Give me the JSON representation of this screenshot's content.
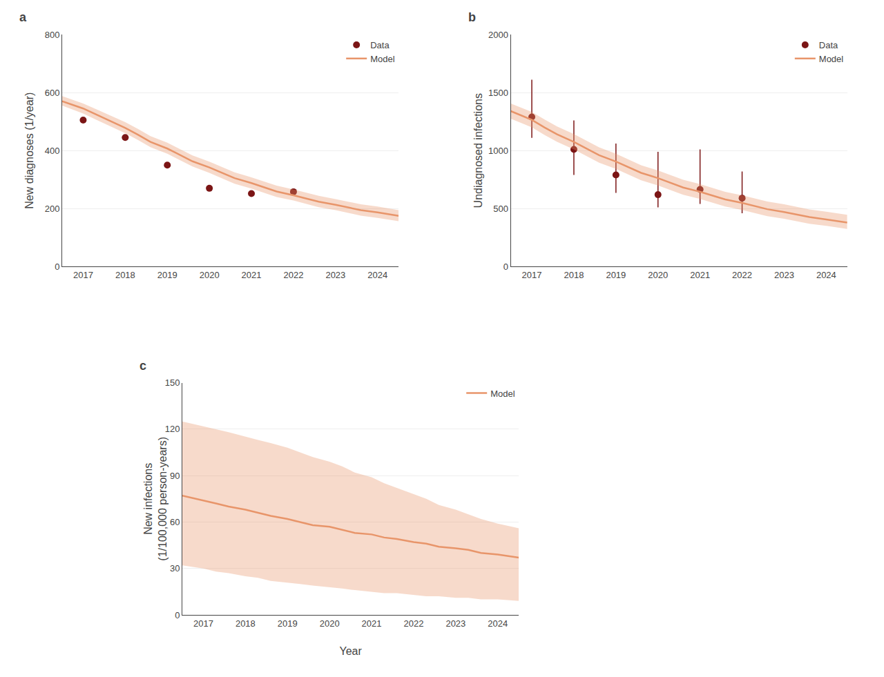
{
  "chart_data": [
    {
      "type": "line",
      "title": "a",
      "ylabel": "New diagnoses (1/year)",
      "xlim": [
        2016.5,
        2024.5
      ],
      "xticks": [
        2017,
        2018,
        2019,
        2020,
        2021,
        2022,
        2023,
        2024
      ],
      "ylim": [
        0,
        800
      ],
      "yticks": [
        0,
        200,
        400,
        600,
        800
      ],
      "grid": "y",
      "legend": "upper right",
      "series": [
        {
          "name": "Data",
          "type": "scatter",
          "color": "#7B1515",
          "x": [
            2017,
            2018,
            2019,
            2020,
            2021,
            2022
          ],
          "values": [
            505,
            445,
            350,
            270,
            252,
            258
          ]
        },
        {
          "name": "Model",
          "type": "line",
          "color": "#E8956A",
          "x": [
            2016.5,
            2017,
            2017.3,
            2017.6,
            2018,
            2018.3,
            2018.6,
            2019,
            2019.3,
            2019.6,
            2020,
            2020.3,
            2020.6,
            2021,
            2021.3,
            2021.6,
            2022,
            2022.3,
            2022.6,
            2023,
            2023.3,
            2023.6,
            2024,
            2024.5
          ],
          "values": [
            570,
            545,
            525,
            505,
            478,
            455,
            430,
            407,
            385,
            363,
            342,
            323,
            305,
            288,
            273,
            259,
            246,
            235,
            224,
            213,
            204,
            195,
            187,
            175
          ],
          "lower": [
            555,
            528,
            507,
            487,
            460,
            437,
            412,
            389,
            367,
            345,
            323,
            304,
            286,
            269,
            254,
            240,
            228,
            216,
            205,
            195,
            185,
            176,
            168,
            157
          ],
          "upper": [
            588,
            562,
            543,
            523,
            498,
            475,
            450,
            427,
            405,
            383,
            362,
            343,
            325,
            308,
            293,
            279,
            266,
            255,
            244,
            233,
            224,
            215,
            207,
            195
          ]
        }
      ]
    },
    {
      "type": "line",
      "title": "b",
      "ylabel": "Undiagnosed infections",
      "xlim": [
        2016.5,
        2024.5
      ],
      "xticks": [
        2017,
        2018,
        2019,
        2020,
        2021,
        2022,
        2023,
        2024
      ],
      "ylim": [
        0,
        2000
      ],
      "yticks": [
        0,
        500,
        1000,
        1500,
        2000
      ],
      "grid": "y",
      "legend": "upper right",
      "series": [
        {
          "name": "Data",
          "type": "scatter",
          "color": "#7B1515",
          "x": [
            2017,
            2018,
            2019,
            2020,
            2021,
            2022
          ],
          "values": [
            1290,
            1010,
            790,
            620,
            665,
            590
          ],
          "lower": [
            1110,
            790,
            635,
            510,
            540,
            460
          ],
          "upper": [
            1610,
            1260,
            1060,
            990,
            1010,
            820
          ]
        },
        {
          "name": "Model",
          "type": "line",
          "color": "#E8956A",
          "x": [
            2016.5,
            2017,
            2017.3,
            2017.6,
            2018,
            2018.3,
            2018.6,
            2019,
            2019.3,
            2019.6,
            2020,
            2020.3,
            2020.6,
            2021,
            2021.3,
            2021.6,
            2022,
            2022.3,
            2022.6,
            2023,
            2023.3,
            2023.6,
            2024,
            2024.5
          ],
          "values": [
            1340,
            1265,
            1200,
            1140,
            1075,
            1015,
            960,
            905,
            855,
            808,
            763,
            721,
            682,
            645,
            611,
            579,
            549,
            521,
            495,
            471,
            448,
            427,
            407,
            380
          ],
          "lower": [
            1275,
            1200,
            1135,
            1075,
            1010,
            951,
            896,
            842,
            792,
            744,
            699,
            658,
            619,
            583,
            549,
            518,
            488,
            461,
            435,
            412,
            390,
            370,
            351,
            325
          ],
          "upper": [
            1405,
            1333,
            1268,
            1208,
            1143,
            1083,
            1028,
            973,
            922,
            874,
            829,
            787,
            748,
            711,
            677,
            645,
            615,
            587,
            561,
            537,
            514,
            493,
            473,
            447
          ]
        }
      ]
    },
    {
      "type": "line",
      "title": "c",
      "ylabel": "New infections\n(1/100,000 person-years)",
      "xlabel": "Year",
      "xlim": [
        2016.5,
        2024.5
      ],
      "xticks": [
        2017,
        2018,
        2019,
        2020,
        2021,
        2022,
        2023,
        2024
      ],
      "ylim": [
        0,
        150
      ],
      "yticks": [
        0,
        30,
        60,
        90,
        120,
        150
      ],
      "grid": "y",
      "legend": "upper right",
      "series": [
        {
          "name": "Model",
          "type": "line",
          "color": "#E8956A",
          "x": [
            2016.5,
            2017,
            2017.3,
            2017.6,
            2018,
            2018.3,
            2018.6,
            2019,
            2019.3,
            2019.6,
            2020,
            2020.3,
            2020.6,
            2021,
            2021.3,
            2021.6,
            2022,
            2022.3,
            2022.6,
            2023,
            2023.3,
            2023.6,
            2024,
            2024.5
          ],
          "values": [
            77,
            74,
            72,
            70,
            68,
            66,
            64,
            62,
            60,
            58,
            57,
            55,
            53,
            52,
            50,
            49,
            47,
            46,
            44,
            43,
            42,
            40,
            39,
            37
          ],
          "lower": [
            32,
            30,
            28,
            27,
            25,
            24,
            22,
            21,
            20,
            19,
            18,
            17,
            16,
            15,
            14,
            14,
            13,
            12,
            12,
            11,
            11,
            10,
            10,
            9
          ],
          "upper": [
            125,
            122,
            120,
            118,
            115,
            113,
            111,
            108,
            105,
            102,
            99,
            96,
            92,
            89,
            85,
            82,
            78,
            75,
            71,
            68,
            65,
            62,
            59,
            56
          ]
        }
      ]
    }
  ]
}
